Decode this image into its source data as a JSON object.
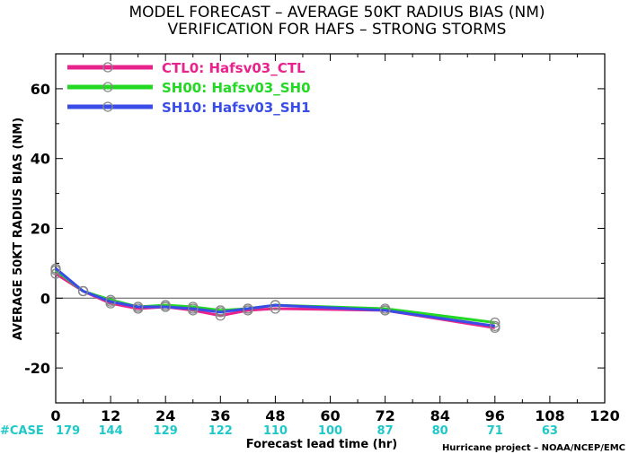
{
  "chart_data": {
    "type": "line",
    "title": "MODEL FORECAST – AVERAGE 50KT RADIUS BIAS (NM)",
    "subtitle": "VERIFICATION FOR HAFS – STRONG STORMS",
    "xlabel": "Forecast lead time (hr)",
    "ylabel": "AVERAGE 50KT RADIUS BIAS (NM)",
    "xlim": [
      0,
      120
    ],
    "ylim": [
      -30,
      70
    ],
    "x_ticks": [
      0,
      12,
      24,
      36,
      48,
      60,
      72,
      84,
      96,
      108,
      120
    ],
    "y_ticks": [
      -20,
      0,
      20,
      40,
      60
    ],
    "zero_line": true,
    "grid": false,
    "legend_position": "top-left",
    "case_prefix": "#CASE",
    "cases": [
      {
        "x": 0,
        "label": "179"
      },
      {
        "x": 12,
        "label": "144"
      },
      {
        "x": 24,
        "label": "129"
      },
      {
        "x": 36,
        "label": "122"
      },
      {
        "x": 48,
        "label": "110"
      },
      {
        "x": 60,
        "label": "100"
      },
      {
        "x": 72,
        "label": "87"
      },
      {
        "x": 84,
        "label": "80"
      },
      {
        "x": 96,
        "label": "71"
      },
      {
        "x": 108,
        "label": "63"
      }
    ],
    "credit": "Hurricane project – NOAA/NCEP/EMC",
    "series": [
      {
        "name": "CTL0: Hafsv03_CTL",
        "color": "#e8248c",
        "x": [
          0,
          6,
          12,
          18,
          24,
          30,
          36,
          42,
          48,
          72,
          96
        ],
        "y": [
          7,
          2,
          -1.5,
          -3,
          -2.5,
          -3.5,
          -5,
          -3.5,
          -3,
          -3.5,
          -8.5
        ]
      },
      {
        "name": "SH00: Hafsv03_SH0",
        "color": "#22d822",
        "x": [
          0,
          6,
          12,
          18,
          24,
          30,
          36,
          42,
          48,
          72,
          96
        ],
        "y": [
          8,
          2,
          -0.5,
          -2.5,
          -2,
          -2.5,
          -3.5,
          -3,
          -2,
          -3,
          -7
        ]
      },
      {
        "name": "SH10: Hafsv03_SH1",
        "color": "#3a4ce8",
        "x": [
          0,
          6,
          12,
          18,
          24,
          30,
          36,
          42,
          48,
          72,
          96
        ],
        "y": [
          8.5,
          2,
          -1,
          -2.5,
          -2.5,
          -3,
          -4,
          -3,
          -2,
          -3.5,
          -8
        ]
      }
    ]
  }
}
